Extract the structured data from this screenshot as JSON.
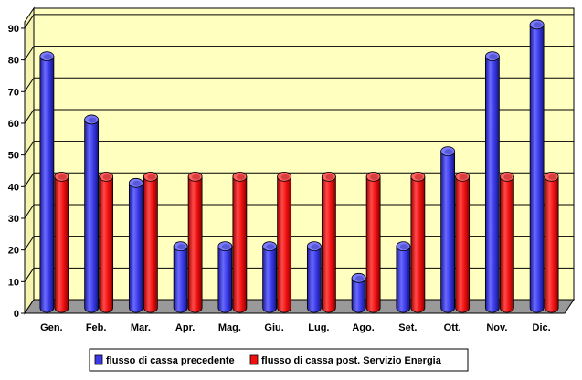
{
  "chart_data": {
    "type": "bar",
    "categories": [
      "Gen.",
      "Feb.",
      "Mar.",
      "Apr.",
      "Mag.",
      "Giu.",
      "Lug.",
      "Ago.",
      "Set.",
      "Ott.",
      "Nov.",
      "Dic."
    ],
    "series": [
      {
        "name": "flusso di cassa precedente",
        "color": "#3a3ae8",
        "values": [
          80,
          60,
          40,
          20,
          20,
          20,
          20,
          10,
          20,
          50,
          80,
          90
        ]
      },
      {
        "name": "flusso di cassa post. Servizio Energia",
        "color": "#f01010",
        "values": [
          42,
          42,
          42,
          42,
          42,
          42,
          42,
          42,
          42,
          42,
          42,
          42
        ]
      }
    ],
    "yticks": [
      0,
      10,
      20,
      30,
      40,
      50,
      60,
      70,
      80,
      90
    ],
    "ylim": [
      0,
      92
    ],
    "grid": true,
    "legend_position": "bottom",
    "wall_color": "#ffffc0",
    "floor_color": "#999999"
  }
}
